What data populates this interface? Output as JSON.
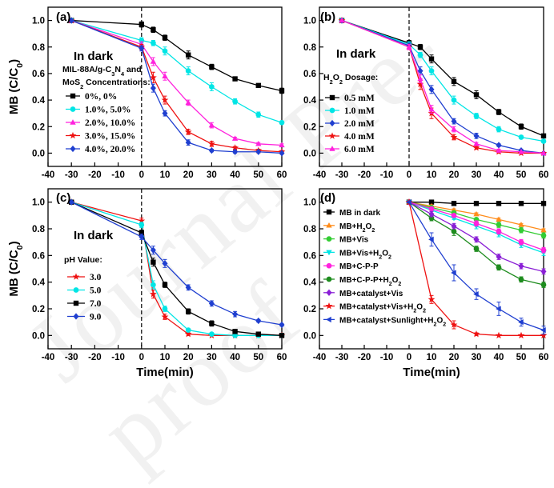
{
  "watermark": "Journal Pre-proof",
  "chart_data": [
    {
      "id": "a",
      "type": "line",
      "panel_label": "(a)",
      "annotation": "In dark",
      "legend_title_lines": [
        [
          "MIL-88A/g-C",
          {
            "sub": "3"
          },
          "N",
          {
            "sub": "4"
          },
          " and"
        ],
        [
          "MoS",
          {
            "sub": "2"
          },
          " Concentrations:"
        ]
      ],
      "xlabel": "",
      "ylabel": "MB (C/C0)",
      "xlim": [
        -40,
        60
      ],
      "ylim": [
        -0.1,
        1.1
      ],
      "xticks": [
        -40,
        -30,
        -20,
        -10,
        0,
        10,
        20,
        30,
        40,
        50,
        60
      ],
      "yticks": [
        0.0,
        0.2,
        0.4,
        0.6,
        0.8,
        1.0
      ],
      "dark_line_x": 0,
      "legend_position": "lower-left",
      "series": [
        {
          "name": "0%, 0%",
          "color": "#000000",
          "marker": "square",
          "x": [
            -30,
            0,
            5,
            10,
            20,
            30,
            40,
            50,
            60
          ],
          "y": [
            1.0,
            0.97,
            0.93,
            0.87,
            0.74,
            0.65,
            0.56,
            0.51,
            0.47
          ],
          "err": [
            0,
            0.02,
            0.02,
            0.02,
            0.03,
            0.02,
            0.01,
            0.01,
            0.02
          ]
        },
        {
          "name": "1.0%, 5.0%",
          "color": "#00e5e5",
          "marker": "circle",
          "x": [
            -30,
            0,
            5,
            10,
            20,
            30,
            40,
            50,
            60
          ],
          "y": [
            1.0,
            0.85,
            0.83,
            0.77,
            0.62,
            0.5,
            0.39,
            0.29,
            0.23
          ],
          "err": [
            0,
            0.02,
            0.02,
            0.03,
            0.03,
            0.03,
            0.02,
            0.02,
            0.01
          ]
        },
        {
          "name": "2.0%, 10.0%",
          "color": "#ff22dd",
          "marker": "triangle",
          "x": [
            -30,
            0,
            5,
            10,
            20,
            30,
            40,
            50,
            60
          ],
          "y": [
            1.0,
            0.82,
            0.69,
            0.58,
            0.38,
            0.21,
            0.11,
            0.07,
            0.06
          ],
          "err": [
            0,
            0.02,
            0.03,
            0.03,
            0.02,
            0.02,
            0.01,
            0.01,
            0.01
          ]
        },
        {
          "name": "3.0%, 15.0%",
          "color": "#ee1111",
          "marker": "star",
          "x": [
            -30,
            0,
            5,
            10,
            20,
            30,
            40,
            50,
            60
          ],
          "y": [
            1.0,
            0.8,
            0.57,
            0.4,
            0.16,
            0.07,
            0.04,
            0.02,
            0.01
          ],
          "err": [
            0,
            0.02,
            0.04,
            0.03,
            0.02,
            0.02,
            0.01,
            0.01,
            0.01
          ]
        },
        {
          "name": "4.0%, 20.0%",
          "color": "#1f3fd0",
          "marker": "diamond",
          "x": [
            -30,
            0,
            5,
            10,
            20,
            30,
            40,
            50,
            60
          ],
          "y": [
            1.0,
            0.79,
            0.49,
            0.3,
            0.08,
            0.02,
            0.01,
            0.01,
            0.0
          ],
          "err": [
            0,
            0.02,
            0.03,
            0.02,
            0.02,
            0.01,
            0.01,
            0.0,
            0.0
          ]
        }
      ]
    },
    {
      "id": "b",
      "type": "line",
      "panel_label": "(b)",
      "annotation": "In dark",
      "legend_title_lines": [
        [
          "H",
          {
            "sub": "2"
          },
          "O",
          {
            "sub": "2"
          },
          " Dosage:"
        ]
      ],
      "xlabel": "",
      "ylabel": "",
      "xlim": [
        -40,
        60
      ],
      "ylim": [
        -0.1,
        1.1
      ],
      "xticks": [
        -40,
        -30,
        -20,
        -10,
        0,
        10,
        20,
        30,
        40,
        50,
        60
      ],
      "yticks": [
        0.0,
        0.2,
        0.4,
        0.6,
        0.8,
        1.0
      ],
      "dark_line_x": 0,
      "legend_position": "lower-left",
      "series": [
        {
          "name": "0.5 mM",
          "color": "#000000",
          "marker": "square",
          "x": [
            -30,
            0,
            5,
            10,
            20,
            30,
            40,
            50,
            60
          ],
          "y": [
            1.0,
            0.83,
            0.8,
            0.71,
            0.54,
            0.44,
            0.31,
            0.2,
            0.13
          ],
          "err": [
            0,
            0.02,
            0.02,
            0.03,
            0.03,
            0.03,
            0.02,
            0.02,
            0.01
          ]
        },
        {
          "name": "1.0 mM",
          "color": "#00e5e5",
          "marker": "circle",
          "x": [
            -30,
            0,
            5,
            10,
            20,
            30,
            40,
            50,
            60
          ],
          "y": [
            1.0,
            0.82,
            0.74,
            0.62,
            0.4,
            0.28,
            0.18,
            0.12,
            0.09
          ],
          "err": [
            0,
            0.02,
            0.02,
            0.03,
            0.03,
            0.02,
            0.02,
            0.01,
            0.01
          ]
        },
        {
          "name": "2.0 mM",
          "color": "#1f3fd0",
          "marker": "diamond",
          "x": [
            -30,
            0,
            5,
            10,
            20,
            30,
            40,
            50,
            60
          ],
          "y": [
            1.0,
            0.81,
            0.62,
            0.48,
            0.24,
            0.13,
            0.06,
            0.02,
            0.0
          ],
          "err": [
            0,
            0.02,
            0.03,
            0.03,
            0.02,
            0.02,
            0.01,
            0.01,
            0.0
          ]
        },
        {
          "name": "4.0 mM",
          "color": "#ee1111",
          "marker": "star",
          "x": [
            -30,
            0,
            5,
            10,
            20,
            30,
            40,
            50,
            60
          ],
          "y": [
            1.0,
            0.8,
            0.52,
            0.3,
            0.12,
            0.04,
            0.01,
            0.0,
            0.0
          ],
          "err": [
            0,
            0.02,
            0.04,
            0.04,
            0.02,
            0.01,
            0.01,
            0.0,
            0.0
          ]
        },
        {
          "name": "6.0 mM",
          "color": "#ff22dd",
          "marker": "triangle",
          "x": [
            -30,
            0,
            5,
            10,
            20,
            30,
            40,
            50,
            60
          ],
          "y": [
            1.0,
            0.8,
            0.56,
            0.33,
            0.18,
            0.07,
            0.02,
            0.01,
            0.0
          ],
          "err": [
            0,
            0.02,
            0.03,
            0.03,
            0.02,
            0.01,
            0.01,
            0.0,
            0.0
          ]
        }
      ]
    },
    {
      "id": "c",
      "type": "line",
      "panel_label": "(c)",
      "annotation": "In dark",
      "legend_title_lines": [
        [
          "pH Value:"
        ]
      ],
      "xlabel": "Time(min)",
      "ylabel": "MB (C/C0)",
      "xlim": [
        -40,
        60
      ],
      "ylim": [
        -0.1,
        1.1
      ],
      "xticks": [
        -40,
        -30,
        -20,
        -10,
        0,
        10,
        20,
        30,
        40,
        50,
        60
      ],
      "yticks": [
        0.0,
        0.2,
        0.4,
        0.6,
        0.8,
        1.0
      ],
      "dark_line_x": 0,
      "legend_position": "lower-left",
      "series": [
        {
          "name": "3.0",
          "color": "#ee1111",
          "marker": "star",
          "x": [
            -30,
            0,
            5,
            10,
            20,
            30,
            40,
            50,
            60
          ],
          "y": [
            1.0,
            0.86,
            0.31,
            0.14,
            0.01,
            0.0,
            0.0,
            0.0,
            0.0
          ],
          "err": [
            0,
            0.02,
            0.03,
            0.02,
            0.01,
            0.0,
            0.0,
            0.0,
            0.0
          ]
        },
        {
          "name": "5.0",
          "color": "#00e5e5",
          "marker": "circle",
          "x": [
            -30,
            0,
            5,
            10,
            20,
            30,
            40,
            50,
            60
          ],
          "y": [
            1.0,
            0.83,
            0.38,
            0.2,
            0.04,
            0.01,
            0.0,
            0.0,
            0.0
          ],
          "err": [
            0,
            0.02,
            0.03,
            0.02,
            0.01,
            0.0,
            0.0,
            0.0,
            0.0
          ]
        },
        {
          "name": "7.0",
          "color": "#000000",
          "marker": "square",
          "x": [
            -30,
            0,
            5,
            10,
            20,
            30,
            40,
            50,
            60
          ],
          "y": [
            1.0,
            0.77,
            0.55,
            0.38,
            0.18,
            0.09,
            0.03,
            0.01,
            0.0
          ],
          "err": [
            0,
            0.02,
            0.03,
            0.02,
            0.02,
            0.02,
            0.01,
            0.0,
            0.0
          ]
        },
        {
          "name": "9.0",
          "color": "#1f3fd0",
          "marker": "diamond",
          "x": [
            -30,
            0,
            5,
            10,
            20,
            30,
            40,
            50,
            60
          ],
          "y": [
            1.0,
            0.74,
            0.64,
            0.54,
            0.36,
            0.24,
            0.16,
            0.11,
            0.08
          ],
          "err": [
            0,
            0.02,
            0.03,
            0.03,
            0.02,
            0.02,
            0.02,
            0.01,
            0.01
          ]
        }
      ]
    },
    {
      "id": "d",
      "type": "line",
      "panel_label": "(d)",
      "annotation": "",
      "legend_title_lines": [],
      "xlabel": "Time(min)",
      "ylabel": "",
      "xlim": [
        -40,
        60
      ],
      "ylim": [
        -0.1,
        1.1
      ],
      "xticks": [
        -40,
        -30,
        -20,
        -10,
        0,
        10,
        20,
        30,
        40,
        50,
        60
      ],
      "yticks": [
        0.0,
        0.2,
        0.4,
        0.6,
        0.8,
        1.0
      ],
      "dark_line_x": null,
      "legend_position": "lower-left",
      "series": [
        {
          "name": "MB in dark",
          "label_parts": [
            "MB in dark"
          ],
          "color": "#000000",
          "marker": "square",
          "x": [
            0,
            10,
            20,
            30,
            40,
            50,
            60
          ],
          "y": [
            1.0,
            1.0,
            0.99,
            0.99,
            0.99,
            0.99,
            0.99
          ],
          "err": [
            0,
            0,
            0,
            0,
            0,
            0,
            0
          ]
        },
        {
          "name": "MB+H2O2",
          "label_parts": [
            "MB+H",
            {
              "sub": "2"
            },
            "O",
            {
              "sub": "2"
            }
          ],
          "color": "#ff8c1a",
          "marker": "triangle",
          "x": [
            0,
            10,
            20,
            30,
            40,
            50,
            60
          ],
          "y": [
            1.0,
            0.97,
            0.94,
            0.91,
            0.87,
            0.83,
            0.79
          ],
          "err": [
            0,
            0.01,
            0.01,
            0.01,
            0.01,
            0.01,
            0.01
          ]
        },
        {
          "name": "MB+Vis",
          "label_parts": [
            "MB+Vis"
          ],
          "color": "#33cc33",
          "marker": "circle",
          "x": [
            0,
            10,
            20,
            30,
            40,
            50,
            60
          ],
          "y": [
            1.0,
            0.96,
            0.92,
            0.87,
            0.83,
            0.79,
            0.75
          ],
          "err": [
            0,
            0.01,
            0.01,
            0.01,
            0.02,
            0.02,
            0.02
          ]
        },
        {
          "name": "MB+Vis+H2O2",
          "label_parts": [
            "MB+Vis+H",
            {
              "sub": "2"
            },
            "O",
            {
              "sub": "2"
            }
          ],
          "color": "#00e5e5",
          "marker": "triangle-down",
          "x": [
            0,
            10,
            20,
            30,
            40,
            50,
            60
          ],
          "y": [
            1.0,
            0.94,
            0.88,
            0.82,
            0.76,
            0.68,
            0.62
          ],
          "err": [
            0,
            0.01,
            0.01,
            0.02,
            0.02,
            0.02,
            0.02
          ]
        },
        {
          "name": "MB+C-P-P",
          "label_parts": [
            "MB+C-P-P"
          ],
          "color": "#ff22dd",
          "marker": "circle",
          "x": [
            0,
            10,
            20,
            30,
            40,
            50,
            60
          ],
          "y": [
            1.0,
            0.95,
            0.9,
            0.84,
            0.78,
            0.7,
            0.64
          ],
          "err": [
            0,
            0.01,
            0.01,
            0.02,
            0.02,
            0.02,
            0.02
          ]
        },
        {
          "name": "MB+C-P-P+H2O2",
          "label_parts": [
            "MB+C-P-P+H",
            {
              "sub": "2"
            },
            "O",
            {
              "sub": "2"
            }
          ],
          "color": "#1e8c1e",
          "marker": "circle",
          "x": [
            0,
            10,
            20,
            30,
            40,
            50,
            60
          ],
          "y": [
            1.0,
            0.88,
            0.78,
            0.65,
            0.51,
            0.42,
            0.38
          ],
          "err": [
            0,
            0.02,
            0.03,
            0.02,
            0.02,
            0.02,
            0.02
          ]
        },
        {
          "name": "MB+catalyst+Vis",
          "label_parts": [
            "MB+catalyst+Vis"
          ],
          "color": "#8a1fd6",
          "marker": "diamond",
          "x": [
            0,
            10,
            20,
            30,
            40,
            50,
            60
          ],
          "y": [
            1.0,
            0.91,
            0.82,
            0.72,
            0.59,
            0.52,
            0.48
          ],
          "err": [
            0,
            0.02,
            0.02,
            0.02,
            0.02,
            0.02,
            0.02
          ]
        },
        {
          "name": "MB+catalyst+Vis+H2O2",
          "label_parts": [
            "MB+catalyst+Vis+H",
            {
              "sub": "2"
            },
            "O",
            {
              "sub": "2"
            }
          ],
          "color": "#ee1111",
          "marker": "star",
          "x": [
            0,
            10,
            20,
            30,
            40,
            50,
            60
          ],
          "y": [
            1.0,
            0.27,
            0.08,
            0.01,
            0.0,
            0.0,
            0.0
          ],
          "err": [
            0,
            0.03,
            0.03,
            0.01,
            0.0,
            0.0,
            0.0
          ]
        },
        {
          "name": "MB+catalyst+Sunlight+H2O2",
          "label_parts": [
            "MB+catalyst+Sunlight+H",
            {
              "sub": "2"
            },
            "O",
            {
              "sub": "2"
            }
          ],
          "color": "#1f3fd0",
          "marker": "triangle-left",
          "x": [
            0,
            10,
            20,
            30,
            40,
            50,
            60
          ],
          "y": [
            1.0,
            0.72,
            0.47,
            0.31,
            0.2,
            0.1,
            0.04
          ],
          "err": [
            0,
            0.05,
            0.06,
            0.04,
            0.05,
            0.03,
            0.03
          ]
        }
      ]
    }
  ]
}
